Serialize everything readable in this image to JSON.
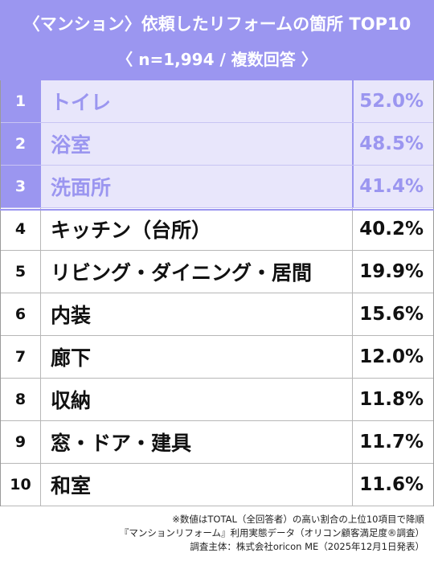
{
  "header": {
    "title": "〈マンション〉依頼したリフォームの箇所 TOP10",
    "subtitle": "〈 n=1,994 / 複数回答 〉"
  },
  "chart_data": {
    "type": "table",
    "title": "〈マンション〉依頼したリフォームの箇所 TOP10",
    "subtitle": "〈 n=1,994 / 複数回答 〉",
    "highlight_top": 3,
    "rows": [
      {
        "rank": "1",
        "label": "トイレ",
        "value": 52.0,
        "display": "52.0%"
      },
      {
        "rank": "2",
        "label": "浴室",
        "value": 48.5,
        "display": "48.5%"
      },
      {
        "rank": "3",
        "label": "洗面所",
        "value": 41.4,
        "display": "41.4%"
      },
      {
        "rank": "4",
        "label": "キッチン（台所）",
        "value": 40.2,
        "display": "40.2%"
      },
      {
        "rank": "5",
        "label": "リビング・ダイニング・居間",
        "value": 19.9,
        "display": "19.9%"
      },
      {
        "rank": "6",
        "label": "内装",
        "value": 15.6,
        "display": "15.6%"
      },
      {
        "rank": "7",
        "label": "廊下",
        "value": 12.0,
        "display": "12.0%"
      },
      {
        "rank": "8",
        "label": "収納",
        "value": 11.8,
        "display": "11.8%"
      },
      {
        "rank": "9",
        "label": "窓・ドア・建具",
        "value": 11.7,
        "display": "11.7%"
      },
      {
        "rank": "10",
        "label": "和室",
        "value": 11.6,
        "display": "11.6%"
      }
    ]
  },
  "footnotes": [
    "※数値はTOTAL（全回答者）の高い割合の上位10項目で降順",
    "『マンションリフォーム』利用実態データ（オリコン顧客満足度®調査）",
    "調査主体：株式会社oricon ME（2025年12月1日発表）"
  ],
  "colors": {
    "accent": "#9b96f0",
    "top_row_bg": "#e8e6fb",
    "text": "#111111",
    "border": "#b7b7b7"
  }
}
